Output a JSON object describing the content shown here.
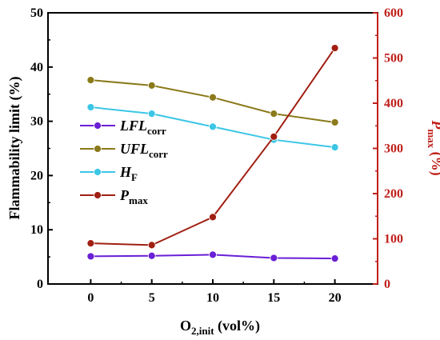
{
  "chart_data": {
    "type": "line",
    "title": "",
    "x": [
      0,
      5,
      10,
      15,
      20
    ],
    "xlabel": {
      "main": "O",
      "sub": "2,init",
      "suffix": " (vol%)"
    },
    "xlim": [
      -3.5,
      23.5
    ],
    "xticks": [
      0,
      5,
      10,
      15,
      20
    ],
    "ylabel_left": "Flammability limit (%)",
    "ylim_left": [
      0,
      50
    ],
    "yticks_left": [
      0,
      10,
      20,
      30,
      40,
      50
    ],
    "ylabel_right": {
      "main": "P",
      "sub": "max",
      "suffix": " (%)"
    },
    "ylim_right": [
      0,
      600
    ],
    "yticks_right": [
      0,
      100,
      200,
      300,
      400,
      500,
      600
    ],
    "right_axis_color": "#c0201b",
    "grid": false,
    "legend_position": "left",
    "series": [
      {
        "key": "lfl",
        "name_main": "LFL",
        "name_sub": "corr",
        "axis": "left",
        "color": "#6a1fd6",
        "values": [
          5.1,
          5.2,
          5.4,
          4.8,
          4.7
        ]
      },
      {
        "key": "ufl",
        "name_main": "UFL",
        "name_sub": "corr",
        "axis": "left",
        "color": "#8a7a1a",
        "values": [
          37.6,
          36.6,
          34.4,
          31.4,
          29.8
        ]
      },
      {
        "key": "hf",
        "name_main": "H",
        "name_sub": "F",
        "axis": "left",
        "color": "#3cc6e6",
        "values": [
          32.6,
          31.4,
          29.0,
          26.6,
          25.2
        ]
      },
      {
        "key": "pmax",
        "name_main": "P",
        "name_sub": "max",
        "axis": "right",
        "color": "#a01f12",
        "values": [
          90,
          86,
          148,
          326,
          522
        ]
      }
    ]
  }
}
